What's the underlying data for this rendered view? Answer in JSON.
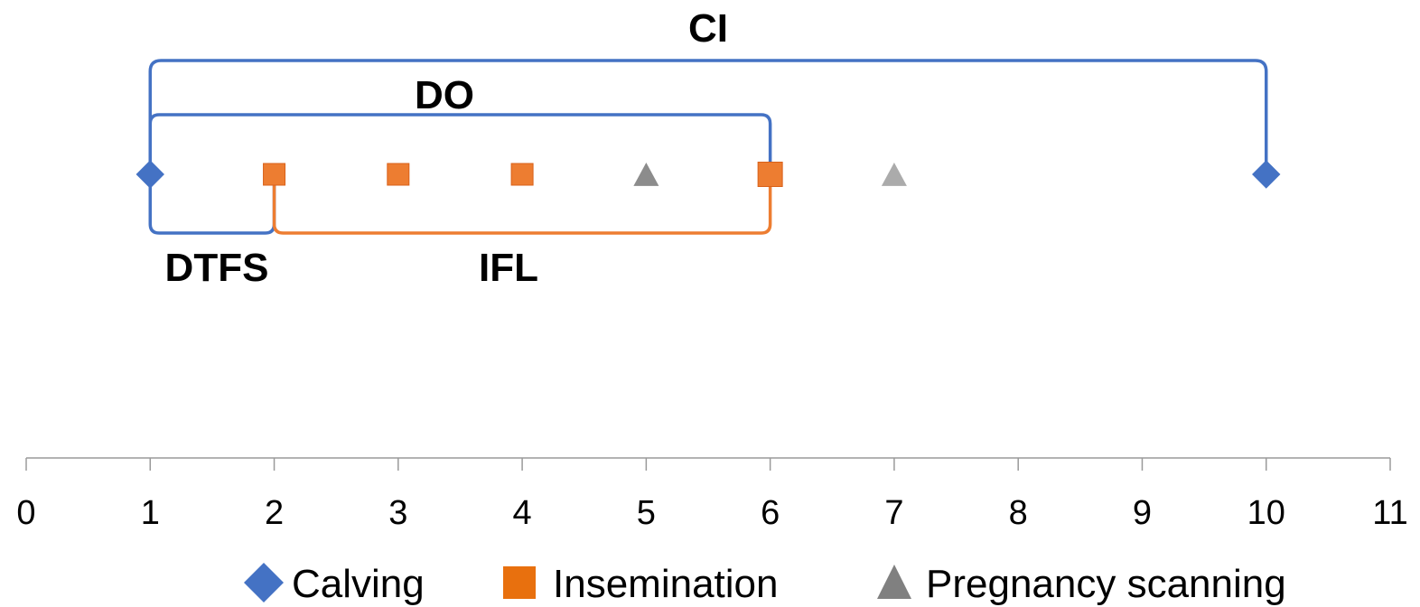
{
  "chart_data": {
    "type": "scatter",
    "x_axis": {
      "range": [
        0,
        11
      ],
      "ticks": [
        0,
        1,
        2,
        3,
        4,
        5,
        6,
        7,
        8,
        9,
        10,
        11
      ],
      "tick_labels": [
        "0",
        "1",
        "2",
        "3",
        "4",
        "5",
        "6",
        "7",
        "8",
        "9",
        "10",
        "11"
      ]
    },
    "series": [
      {
        "name": "Calving",
        "marker": "diamond",
        "color": "#4472C4",
        "x": [
          1,
          10
        ]
      },
      {
        "name": "Insemination",
        "marker": "square",
        "color": "#ED7D31",
        "x": [
          2,
          3,
          4,
          6
        ]
      },
      {
        "name": "Pregnancy scanning",
        "marker": "triangle",
        "color": "#8C8C8C",
        "x": [
          5,
          7
        ]
      }
    ],
    "intervals": [
      {
        "label": "CI",
        "start": 1,
        "end": 10,
        "color": "#4472C4",
        "side": "above"
      },
      {
        "label": "DO",
        "start": 1,
        "end": 6,
        "color": "#4472C4",
        "side": "above"
      },
      {
        "label": "DTFS",
        "start": 1,
        "end": 2,
        "color": "#4472C4",
        "side": "below"
      },
      {
        "label": "IFL",
        "start": 2,
        "end": 6,
        "color": "#ED7D31",
        "side": "below"
      }
    ],
    "legend": {
      "position": "bottom",
      "items": [
        {
          "label": "Calving",
          "marker": "diamond",
          "color": "#4472C4"
        },
        {
          "label": "Insemination",
          "marker": "square",
          "color": "#E8700E"
        },
        {
          "label": "Pregnancy scanning",
          "marker": "triangle",
          "color": "#808080"
        }
      ]
    }
  }
}
